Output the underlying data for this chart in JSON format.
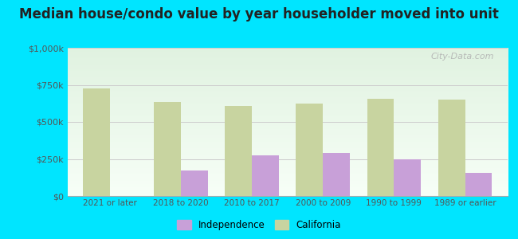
{
  "title": "Median house/condo value by year householder moved into unit",
  "categories": [
    "2021 or later",
    "2018 to 2020",
    "2010 to 2017",
    "2000 to 2009",
    "1990 to 1999",
    "1989 or earlier"
  ],
  "independence_values": [
    0,
    170000,
    275000,
    290000,
    250000,
    155000
  ],
  "california_values": [
    725000,
    635000,
    610000,
    625000,
    655000,
    650000
  ],
  "independence_color": "#c8a0d8",
  "california_color": "#c8d4a0",
  "background_color": "#00e5ff",
  "plot_bg_top": "#f5faf0",
  "plot_bg_bottom": "#e8f5e8",
  "ylabel_values": [
    0,
    250000,
    500000,
    750000,
    1000000
  ],
  "ylabel_labels": [
    "$0",
    "$250k",
    "$500k",
    "$750k",
    "$1,000k"
  ],
  "ylim": [
    0,
    1000000
  ],
  "bar_width": 0.38,
  "watermark": "City-Data.com",
  "legend_independence": "Independence",
  "legend_california": "California",
  "title_fontsize": 12,
  "tick_fontsize": 7.5,
  "ytick_fontsize": 8
}
